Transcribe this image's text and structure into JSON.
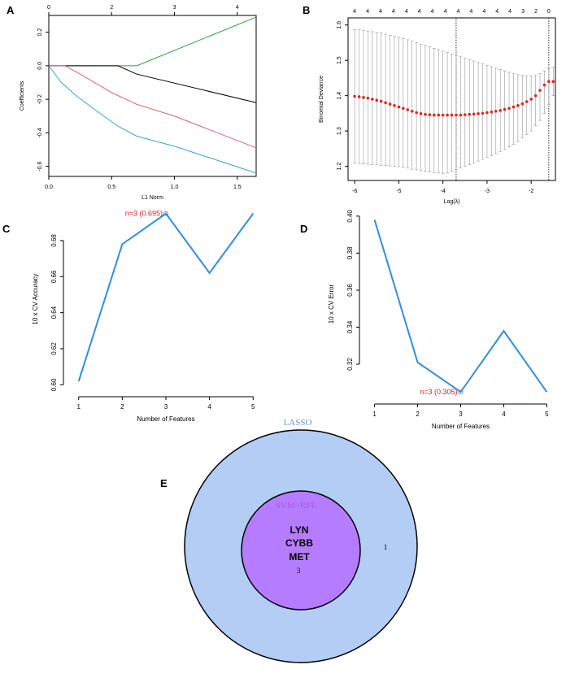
{
  "panels": {
    "A": {
      "letter": "A"
    },
    "B": {
      "letter": "B"
    },
    "C": {
      "letter": "C"
    },
    "D": {
      "letter": "D"
    },
    "E": {
      "letter": "E"
    }
  },
  "chart_data": [
    {
      "id": "A",
      "type": "line",
      "xlabel": "L1 Norm",
      "ylabel": "Coefficients",
      "xlim": [
        0,
        1.65
      ],
      "ylim": [
        -0.66,
        0.3
      ],
      "xticks": [
        "0.0",
        "0.5",
        "1.0",
        "1.5"
      ],
      "xtick_values": [
        0,
        0.5,
        1.0,
        1.5
      ],
      "yticks": [
        "-0.6",
        "-0.4",
        "-0.2",
        "0.0",
        "0.2"
      ],
      "ytick_values": [
        -0.6,
        -0.4,
        -0.2,
        0.0,
        0.2
      ],
      "top_ticks": [
        "0",
        "2",
        "3",
        "4"
      ],
      "top_tick_values": [
        0,
        0.5,
        1.0,
        1.5
      ],
      "series": [
        {
          "color": "#1fa83a",
          "x": [
            0,
            0.7,
            1.65
          ],
          "y": [
            0,
            0,
            0.29
          ]
        },
        {
          "color": "#000000",
          "x": [
            0,
            0.55,
            0.7,
            1.65
          ],
          "y": [
            0,
            0,
            -0.05,
            -0.22
          ]
        },
        {
          "color": "#e0607a",
          "x": [
            0,
            0.13,
            0.25,
            0.5,
            0.7,
            1.0,
            1.65
          ],
          "y": [
            0,
            0,
            -0.05,
            -0.16,
            -0.23,
            -0.3,
            -0.49
          ]
        },
        {
          "color": "#35a6e0",
          "x": [
            0,
            0.1,
            0.22,
            0.4,
            0.55,
            0.7,
            1.0,
            1.65
          ],
          "y": [
            0,
            -0.1,
            -0.18,
            -0.28,
            -0.36,
            -0.42,
            -0.48,
            -0.64
          ]
        }
      ]
    },
    {
      "id": "B",
      "type": "scatter",
      "xlabel": "Log(λ)",
      "ylabel": "Binomial Deviance",
      "xlim": [
        -6.15,
        -1.45
      ],
      "ylim": [
        1.16,
        1.62
      ],
      "xticks": [
        "-6",
        "-5",
        "-4",
        "-3",
        "-2"
      ],
      "xtick_values": [
        -6,
        -5,
        -4,
        -3,
        -2
      ],
      "yticks": [
        "1.2",
        "1.3",
        "1.4",
        "1.5",
        "1.6"
      ],
      "ytick_values": [
        1.2,
        1.3,
        1.4,
        1.5,
        1.6
      ],
      "top_labels": [
        "4",
        "4",
        "4",
        "4",
        "4",
        "4",
        "4",
        "4",
        "4",
        "4",
        "4",
        "4",
        "4",
        "3",
        "2",
        "0"
      ],
      "x": [
        -6.0,
        -5.9,
        -5.8,
        -5.7,
        -5.6,
        -5.5,
        -5.4,
        -5.3,
        -5.2,
        -5.1,
        -5.0,
        -4.9,
        -4.8,
        -4.7,
        -4.6,
        -4.5,
        -4.4,
        -4.3,
        -4.2,
        -4.1,
        -4.0,
        -3.9,
        -3.8,
        -3.7,
        -3.6,
        -3.5,
        -3.4,
        -3.3,
        -3.2,
        -3.1,
        -3.0,
        -2.9,
        -2.8,
        -2.7,
        -2.6,
        -2.5,
        -2.4,
        -2.3,
        -2.2,
        -2.1,
        -2.0,
        -1.9,
        -1.8,
        -1.7,
        -1.6,
        -1.5
      ],
      "y": [
        1.398,
        1.397,
        1.395,
        1.393,
        1.39,
        1.387,
        1.384,
        1.38,
        1.376,
        1.372,
        1.368,
        1.364,
        1.36,
        1.356,
        1.352,
        1.349,
        1.347,
        1.346,
        1.345,
        1.345,
        1.345,
        1.345,
        1.345,
        1.345,
        1.345,
        1.346,
        1.347,
        1.348,
        1.349,
        1.35,
        1.352,
        1.354,
        1.356,
        1.358,
        1.361,
        1.364,
        1.368,
        1.372,
        1.377,
        1.383,
        1.39,
        1.4,
        1.415,
        1.43,
        1.44,
        1.44
      ],
      "ylow": [
        1.209,
        1.208,
        1.207,
        1.206,
        1.205,
        1.204,
        1.203,
        1.202,
        1.201,
        1.2,
        1.199,
        1.197,
        1.195,
        1.192,
        1.19,
        1.188,
        1.186,
        1.184,
        1.182,
        1.181,
        1.18,
        1.182,
        1.185,
        1.19,
        1.195,
        1.2,
        1.205,
        1.21,
        1.215,
        1.22,
        1.225,
        1.23,
        1.236,
        1.242,
        1.248,
        1.255,
        1.262,
        1.27,
        1.28,
        1.29,
        1.3,
        1.315,
        1.33,
        1.35,
        1.375,
        1.4
      ],
      "yhigh": [
        1.587,
        1.586,
        1.585,
        1.583,
        1.581,
        1.579,
        1.577,
        1.574,
        1.571,
        1.568,
        1.565,
        1.562,
        1.558,
        1.554,
        1.55,
        1.546,
        1.542,
        1.538,
        1.534,
        1.53,
        1.526,
        1.522,
        1.518,
        1.514,
        1.51,
        1.506,
        1.502,
        1.498,
        1.494,
        1.49,
        1.486,
        1.482,
        1.478,
        1.474,
        1.47,
        1.466,
        1.462,
        1.459,
        1.457,
        1.456,
        1.456,
        1.458,
        1.462,
        1.47,
        1.476,
        1.48
      ],
      "vlines": [
        -3.7,
        -1.6
      ]
    },
    {
      "id": "C",
      "type": "line",
      "xlabel": "Number of Features",
      "ylabel": "10 x CV Accuracy",
      "xlim": [
        0.8,
        5.2
      ],
      "ylim": [
        0.597,
        0.698
      ],
      "xticks": [
        "1",
        "2",
        "3",
        "4",
        "5"
      ],
      "xtick_values": [
        1,
        2,
        3,
        4,
        5
      ],
      "yticks": [
        "0.60",
        "0.62",
        "0.64",
        "0.66",
        "0.68"
      ],
      "ytick_values": [
        0.6,
        0.62,
        0.64,
        0.66,
        0.68
      ],
      "x": [
        1,
        2,
        3,
        4,
        5
      ],
      "y": [
        0.602,
        0.678,
        0.695,
        0.662,
        0.695
      ],
      "annotation": "n=3 (0.695)",
      "annotation_x": 3,
      "annotation_y": 0.695
    },
    {
      "id": "D",
      "type": "line",
      "xlabel": "Number of Features",
      "ylabel": "10 x CV Error",
      "xlim": [
        0.8,
        5.2
      ],
      "ylim": [
        0.302,
        0.403
      ],
      "xticks": [
        "1",
        "2",
        "3",
        "4",
        "5"
      ],
      "xtick_values": [
        1,
        2,
        3,
        4,
        5
      ],
      "yticks": [
        "0.32",
        "0.34",
        "0.36",
        "0.38",
        "0.40"
      ],
      "ytick_values": [
        0.32,
        0.34,
        0.36,
        0.38,
        0.4
      ],
      "x": [
        1,
        2,
        3,
        4,
        5
      ],
      "y": [
        0.398,
        0.321,
        0.305,
        0.338,
        0.305
      ],
      "annotation": "n=3 (0.305)",
      "annotation_x": 3,
      "annotation_y": 0.305
    }
  ],
  "venn": {
    "outer_label": "LASSO",
    "inner_label": "SVM−RFE",
    "genes": [
      "LYN",
      "CYBB",
      "MET"
    ],
    "inner_count": "3",
    "outer_count": "1",
    "outer_color": "#b3cdf5",
    "inner_color": "#b57cff",
    "outer_label_color": "#6a93d6",
    "inner_label_color": "#b254e6"
  }
}
